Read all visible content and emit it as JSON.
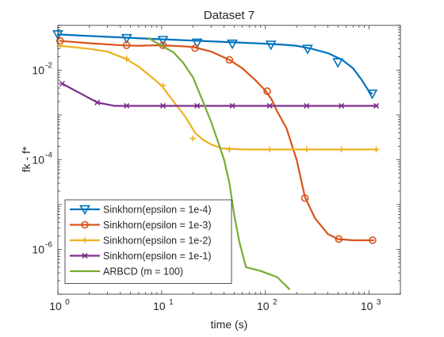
{
  "figure": {
    "title": "Dataset 7",
    "xlabel": "time (s)",
    "ylabel": "fk - f*"
  },
  "chart_data": {
    "type": "line",
    "title": "Dataset 7",
    "xlabel": "time (s)",
    "ylabel": "fk - f*",
    "xscale": "log",
    "yscale": "log",
    "xlim": [
      1,
      2000
    ],
    "ylim": [
      1e-07,
      0.1
    ],
    "grid": false,
    "legend_position": "bottom-left",
    "x_ticks": [
      {
        "value": 1,
        "base": "10",
        "exp": "0"
      },
      {
        "value": 10,
        "base": "10",
        "exp": "1"
      },
      {
        "value": 100,
        "base": "10",
        "exp": "2"
      },
      {
        "value": 1000,
        "base": "10",
        "exp": "3"
      }
    ],
    "y_ticks": [
      {
        "value": 0.01,
        "base": "10",
        "exp": "-2"
      },
      {
        "value": 0.0001,
        "base": "10",
        "exp": "-4"
      },
      {
        "value": 1e-06,
        "base": "10",
        "exp": "-6"
      }
    ],
    "series": [
      {
        "name": "Sinkhorn(epsilon = 1e-4)",
        "color": "#0072BD",
        "marker": "triangle-down",
        "line": [
          [
            1.0,
            0.063
          ],
          [
            2,
            0.058
          ],
          [
            4,
            0.054
          ],
          [
            8,
            0.05
          ],
          [
            15,
            0.047
          ],
          [
            30,
            0.044
          ],
          [
            60,
            0.041
          ],
          [
            100,
            0.039
          ],
          [
            150,
            0.037
          ],
          [
            200,
            0.035
          ],
          [
            280,
            0.03
          ],
          [
            400,
            0.024
          ],
          [
            550,
            0.017
          ],
          [
            700,
            0.011
          ],
          [
            850,
            0.006
          ],
          [
            1000,
            0.0033
          ],
          [
            1060,
            0.003
          ]
        ],
        "markers": [
          [
            1.0,
            0.063
          ],
          [
            4.6,
            0.052
          ],
          [
            10.3,
            0.047
          ],
          [
            22,
            0.041
          ],
          [
            48,
            0.039
          ],
          [
            113,
            0.037
          ],
          [
            255,
            0.03
          ],
          [
            500,
            0.015
          ],
          [
            1070,
            0.003
          ]
        ]
      },
      {
        "name": "Sinkhorn(epsilon = 1e-3)",
        "color": "#D95319",
        "marker": "circle",
        "line": [
          [
            1.05,
            0.045
          ],
          [
            2,
            0.04
          ],
          [
            4,
            0.036
          ],
          [
            6,
            0.035
          ],
          [
            9,
            0.036
          ],
          [
            13,
            0.035
          ],
          [
            20,
            0.033
          ],
          [
            30,
            0.026
          ],
          [
            45,
            0.017
          ],
          [
            60,
            0.011
          ],
          [
            80,
            0.006
          ],
          [
            100,
            0.0035
          ],
          [
            115,
            0.0022
          ],
          [
            130,
            0.0012
          ],
          [
            160,
            0.0005
          ],
          [
            200,
            0.0001
          ],
          [
            240,
            1.5e-05
          ],
          [
            300,
            5e-06
          ],
          [
            400,
            2.2e-06
          ],
          [
            500,
            1.7e-06
          ],
          [
            700,
            1.6e-06
          ],
          [
            1100,
            1.6e-06
          ]
        ],
        "markers": [
          [
            1.05,
            0.045
          ],
          [
            4.6,
            0.036
          ],
          [
            10.3,
            0.036
          ],
          [
            21,
            0.031
          ],
          [
            45,
            0.017
          ],
          [
            104,
            0.0034
          ],
          [
            240,
            1.4e-05
          ],
          [
            510,
            1.7e-06
          ],
          [
            1080,
            1.6e-06
          ]
        ]
      },
      {
        "name": "Sinkhorn(epsilon = 1e-2)",
        "color": "#EDB120",
        "marker": "plus",
        "line": [
          [
            1.05,
            0.035
          ],
          [
            2,
            0.03
          ],
          [
            3,
            0.026
          ],
          [
            4.5,
            0.018
          ],
          [
            6,
            0.012
          ],
          [
            8,
            0.007
          ],
          [
            10,
            0.0045
          ],
          [
            13,
            0.002
          ],
          [
            17,
            0.0009
          ],
          [
            21,
            0.0004
          ],
          [
            25,
            0.00028
          ],
          [
            30,
            0.00022
          ],
          [
            38,
            0.00018
          ],
          [
            60,
            0.00017
          ],
          [
            1200,
            0.00017
          ]
        ],
        "markers": [
          [
            1.05,
            0.035
          ],
          [
            4.6,
            0.018
          ],
          [
            10.3,
            0.0045
          ],
          [
            20,
            0.0003
          ],
          [
            45,
            0.00017
          ],
          [
            110,
            0.00017
          ],
          [
            250,
            0.00017
          ],
          [
            540,
            0.00017
          ],
          [
            1170,
            0.00017
          ]
        ]
      },
      {
        "name": "Sinkhorn(epsilon = 1e-1)",
        "color": "#7E2F8E",
        "marker": "x",
        "line": [
          [
            1.1,
            0.005
          ],
          [
            2.4,
            0.0019
          ],
          [
            3.5,
            0.0016
          ],
          [
            1200,
            0.0016
          ]
        ],
        "markers": [
          [
            1.1,
            0.005
          ],
          [
            2.4,
            0.0019
          ],
          [
            4.6,
            0.0016
          ],
          [
            10.3,
            0.0016
          ],
          [
            22,
            0.0016
          ],
          [
            48,
            0.0016
          ],
          [
            110,
            0.0016
          ],
          [
            250,
            0.0016
          ],
          [
            540,
            0.0016
          ],
          [
            1170,
            0.0016
          ]
        ]
      },
      {
        "name": "ARBCD (m = 100)",
        "color": "#77AC30",
        "marker": "none",
        "line": [
          [
            7.5,
            0.052
          ],
          [
            10,
            0.035
          ],
          [
            13,
            0.025
          ],
          [
            16,
            0.015
          ],
          [
            20,
            0.007
          ],
          [
            25,
            0.002
          ],
          [
            30,
            0.0007
          ],
          [
            35,
            0.00025
          ],
          [
            40,
            0.0001
          ],
          [
            45,
            3e-05
          ],
          [
            50,
            6e-06
          ],
          [
            56,
            1.5e-06
          ],
          [
            61,
            7e-07
          ],
          [
            65,
            4e-07
          ],
          [
            90,
            3.3e-07
          ],
          [
            130,
            2.4e-07
          ],
          [
            170,
            1.3e-07
          ]
        ],
        "markers": []
      }
    ]
  }
}
